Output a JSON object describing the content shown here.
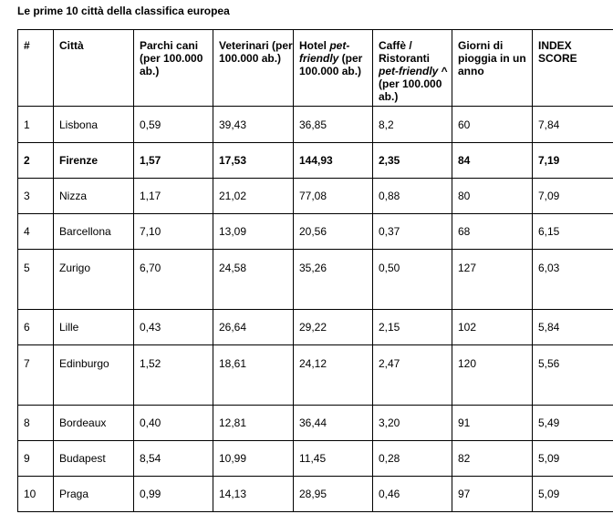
{
  "caption": "Le prime 10 città della classifica europea",
  "headers": {
    "rank": "#",
    "city": "Città",
    "dog_parks": "Parchi cani (per 100.000 ab.)",
    "vets": "Veterinari (per 100.000 ab.)",
    "hotel_prefix": "Hotel ",
    "hotel_italic": "pet-friendly",
    "hotel_suffix": " (per 100.000 ab.)",
    "cafe_prefix": "Caffè / Ristoranti ",
    "cafe_italic": "pet-friendly",
    "cafe_suffix": " ^  (per 100.000 ab.)",
    "rain_days": "Giorni di pioggia in un anno",
    "index": "INDEX SCORE"
  },
  "rows": [
    {
      "rank": "1",
      "city": "Lisbona",
      "dog_parks": "0,59",
      "vets": "39,43",
      "hotels": "36,85",
      "cafes": "8,2",
      "rain_days": "60",
      "index": "7,84"
    },
    {
      "rank": "2",
      "city": "Firenze",
      "dog_parks": "1,57",
      "vets": "17,53",
      "hotels": "144,93",
      "cafes": "2,35",
      "rain_days": "84",
      "index": "7,19"
    },
    {
      "rank": "3",
      "city": "Nizza",
      "dog_parks": "1,17",
      "vets": "21,02",
      "hotels": "77,08",
      "cafes": "0,88",
      "rain_days": "80",
      "index": "7,09"
    },
    {
      "rank": "4",
      "city": "Barcellona",
      "dog_parks": "7,10",
      "vets": "13,09",
      "hotels": "20,56",
      "cafes": "0,37",
      "rain_days": "68",
      "index": "6,15"
    },
    {
      "rank": "5",
      "city": "Zurigo",
      "dog_parks": "6,70",
      "vets": "24,58",
      "hotels": "35,26",
      "cafes": "0,50",
      "rain_days": "127",
      "index": "6,03"
    },
    {
      "rank": "6",
      "city": "Lille",
      "dog_parks": "0,43",
      "vets": "26,64",
      "hotels": "29,22",
      "cafes": "2,15",
      "rain_days": "102",
      "index": "5,84"
    },
    {
      "rank": "7",
      "city": "Edinburgo",
      "dog_parks": "1,52",
      "vets": "18,61",
      "hotels": "24,12",
      "cafes": "2,47",
      "rain_days": "120",
      "index": "5,56"
    },
    {
      "rank": "8",
      "city": "Bordeaux",
      "dog_parks": "0,40",
      "vets": "12,81",
      "hotels": "36,44",
      "cafes": "3,20",
      "rain_days": "91",
      "index": "5,49"
    },
    {
      "rank": "9",
      "city": "Budapest",
      "dog_parks": "8,54",
      "vets": "10,99",
      "hotels": "11,45",
      "cafes": "0,28",
      "rain_days": "82",
      "index": "5,09"
    },
    {
      "rank": "10",
      "city": "Praga",
      "dog_parks": "0,99",
      "vets": "14,13",
      "hotels": "28,95",
      "cafes": "0,46",
      "rain_days": "97",
      "index": "5,09"
    }
  ]
}
